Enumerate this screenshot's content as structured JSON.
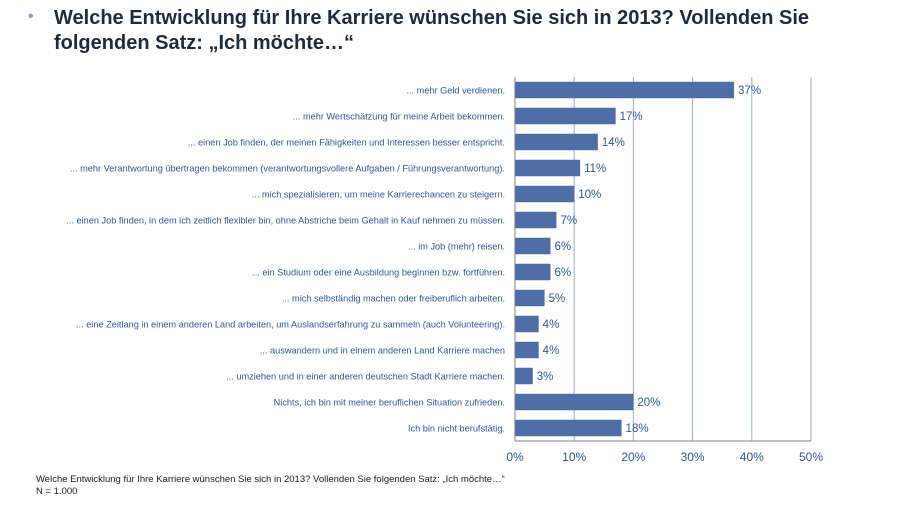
{
  "header": {
    "bullet": "•",
    "title": "Welche Entwicklung für Ihre Karriere wünschen Sie sich in 2013? Vollenden Sie folgenden Satz: „Ich möchte…“"
  },
  "footnote": {
    "question": "Welche Entwicklung für Ihre Karriere wünschen Sie sich in 2013? Vollenden Sie folgenden Satz: „Ich möchte…“",
    "sample": "N = 1.000"
  },
  "colors": {
    "bar": "#4f6ea8",
    "label": "#2f5597",
    "grid": "#9aaed1"
  },
  "chart_data": {
    "type": "bar",
    "orientation": "horizontal",
    "categories": [
      "... mehr Geld verdienen.",
      "... mehr Wertschätzung für meine Arbeit bekommen.",
      "... einen Job finden, der meinen Fähigkeiten und Interessen besser entspricht.",
      "... mehr Verantwortung übertragen bekommen (verantwortungsvollere Aufgaben / Führungsverantwortung).",
      "... mich spezialisieren, um meine Karrierechancen zu steigern.",
      "... einen Job finden, in dem ich zeitlich flexibler bin, ohne Abstriche beim Gehalt in Kauf nehmen zu müssen.",
      "... im Job (mehr) reisen.",
      "... ein Studium oder eine Ausbildung beginnen bzw. fortführen.",
      "... mich selbständig machen oder freiberuflich arbeiten.",
      "... eine Zeitlang in einem anderen Land arbeiten, um Auslandserfahrung zu sammeln (auch Volunteering).",
      "... auswandern und in einem anderen Land Karriere machen",
      "... umziehen und in einer anderen deutschen Stadt Karriere machen.",
      "Nichts, ich bin mit meiner beruflichen Situation zufrieden.",
      "Ich bin nicht berufstätig."
    ],
    "values": [
      37,
      17,
      14,
      11,
      10,
      7,
      6,
      6,
      5,
      4,
      4,
      3,
      20,
      18
    ],
    "value_labels": [
      "37%",
      "17%",
      "14%",
      "11%",
      "10%",
      "7%",
      "6%",
      "6%",
      "5%",
      "4%",
      "4%",
      "3%",
      "20%",
      "18%"
    ],
    "xlim": [
      0,
      50
    ],
    "xticks": [
      0,
      10,
      20,
      30,
      40,
      50
    ],
    "xtick_labels": [
      "0%",
      "10%",
      "20%",
      "30%",
      "40%",
      "50%"
    ],
    "grid": true
  }
}
